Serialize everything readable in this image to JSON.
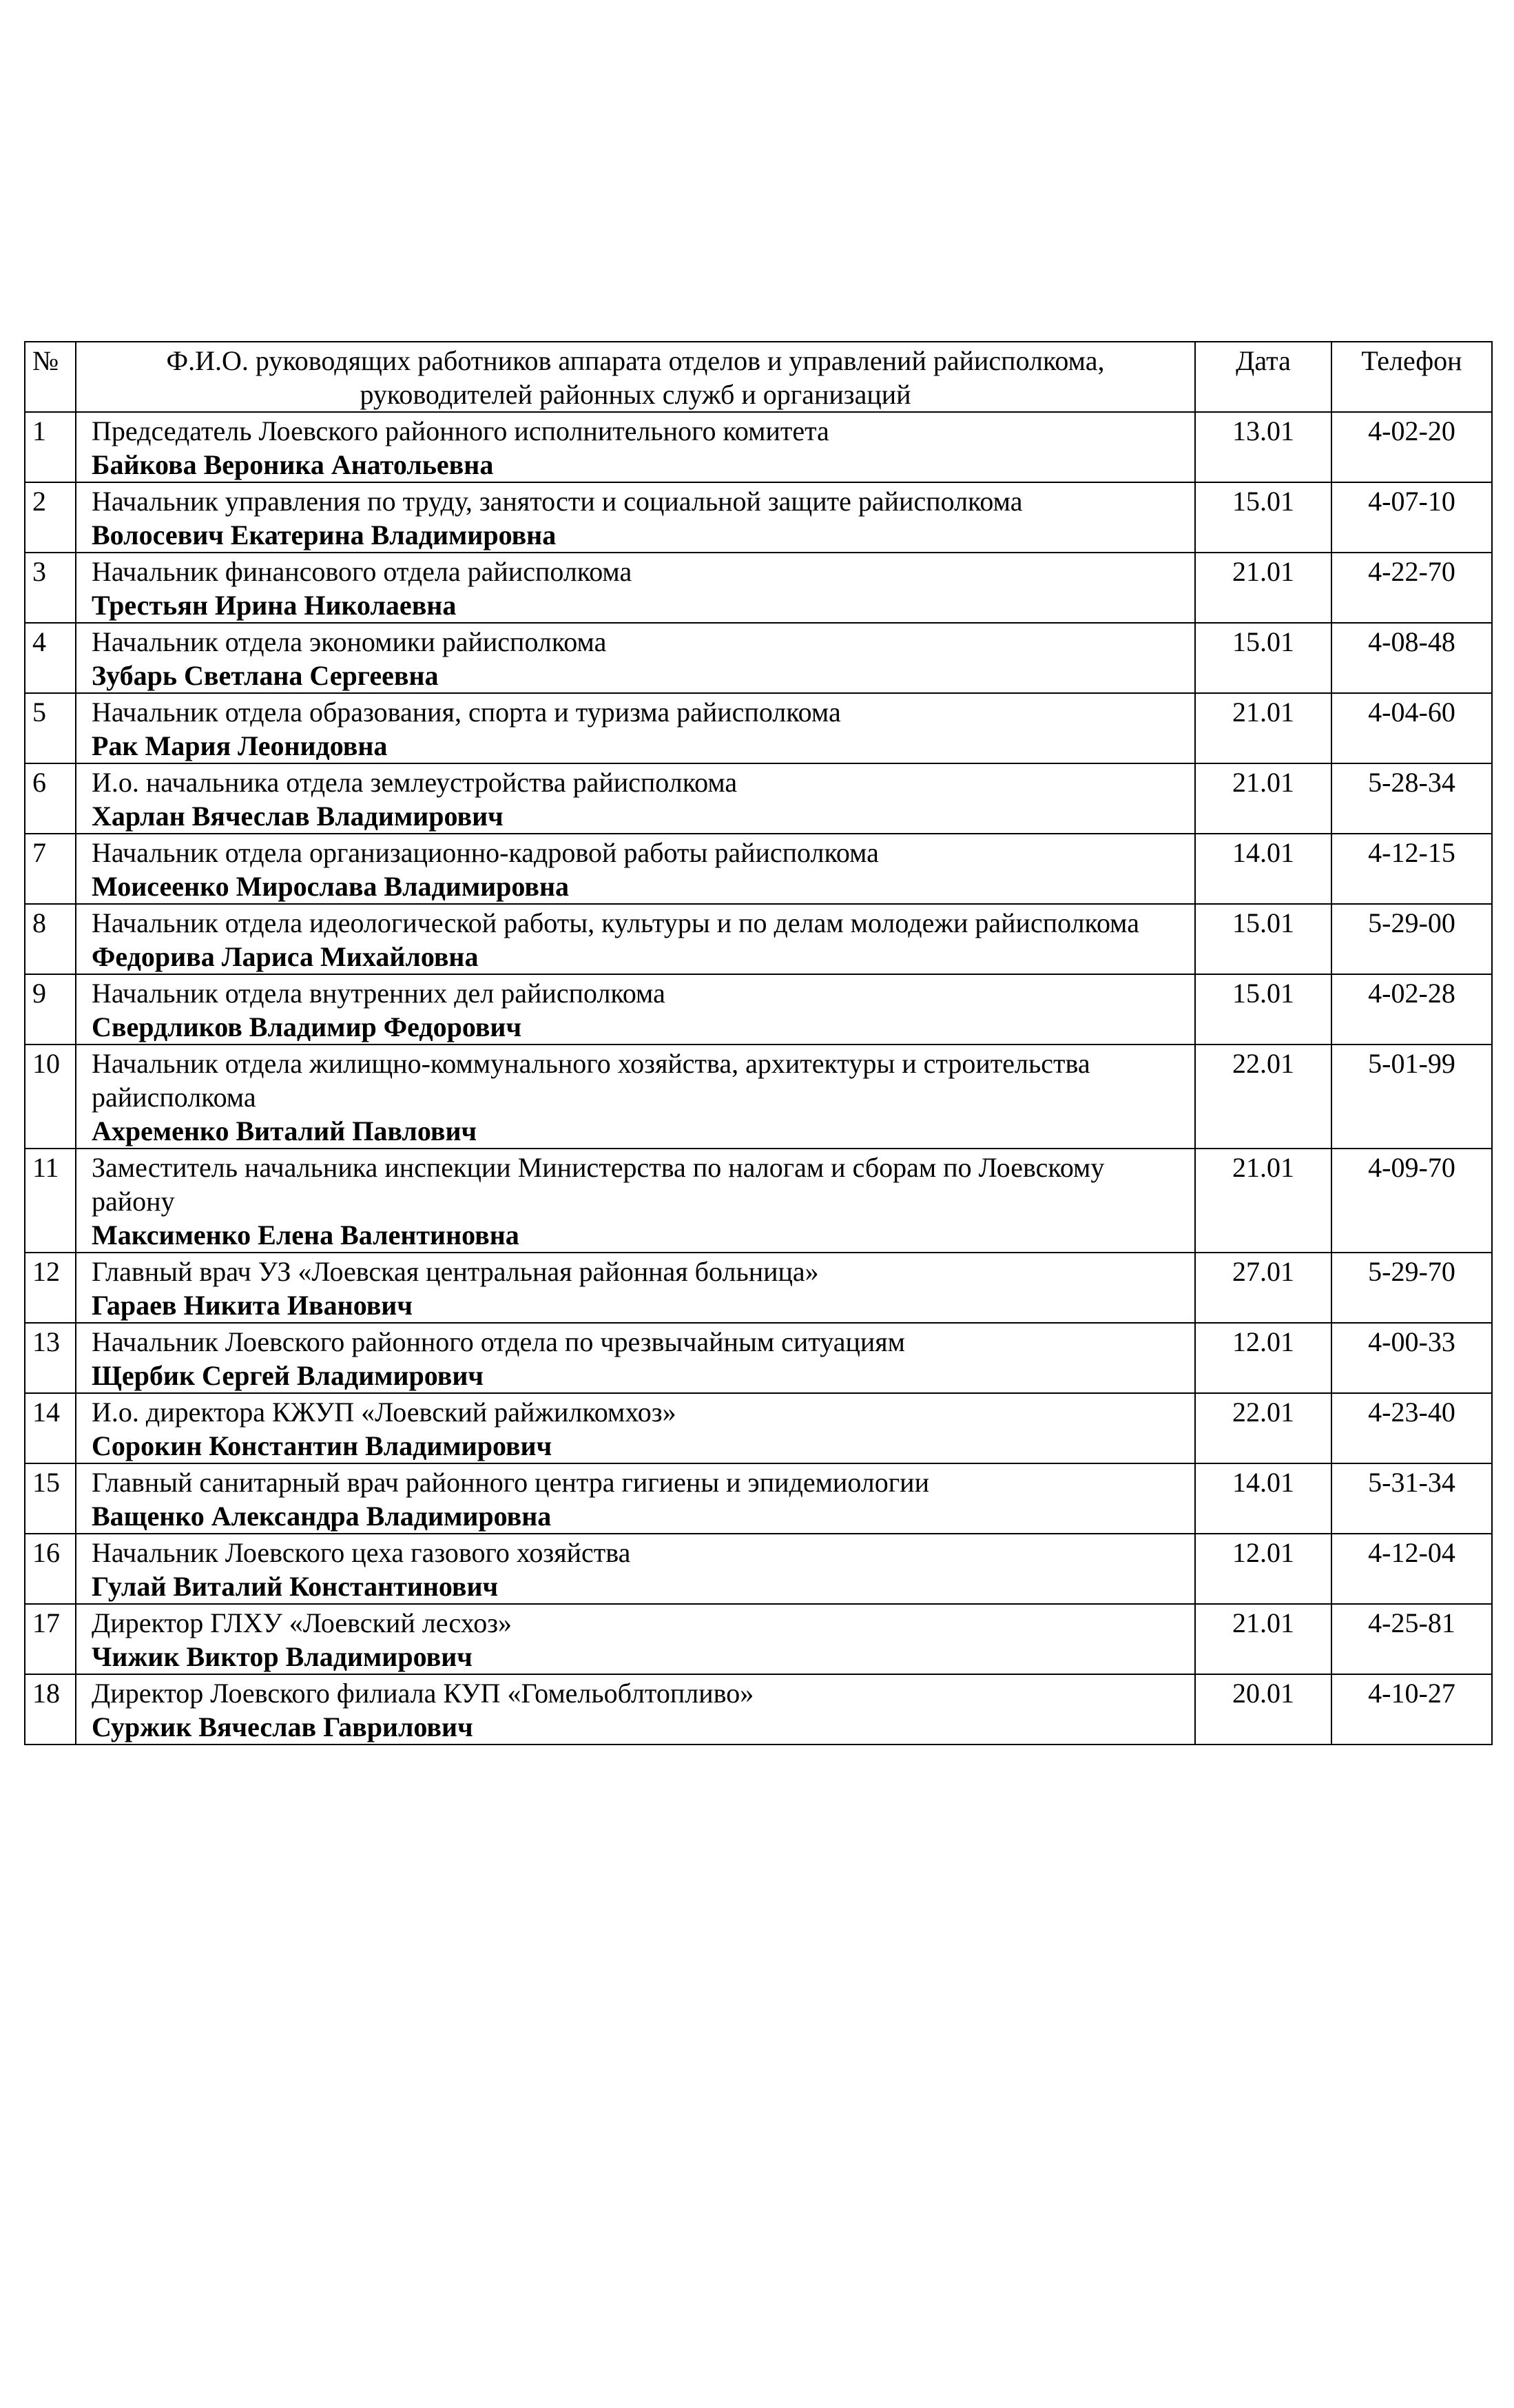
{
  "header": {
    "num": "№",
    "title_line1": "Ф.И.О. руководящих работников аппарата отделов и управлений райисполкома,",
    "title_line2": "руководителей  районных служб и организаций",
    "date": "Дата",
    "phone": "Телефон"
  },
  "rows": [
    {
      "num": "1",
      "position": "Председатель Лоевского районного исполнительного комитета",
      "name": "Байкова Вероника Анатольевна",
      "date": "13.01",
      "phone": "4-02-20"
    },
    {
      "num": "2",
      "position": "Начальник управления  по труду, занятости и социальной защите райисполкома",
      "name": "Волосевич Екатерина Владимировна",
      "date": "15.01",
      "phone": "4-07-10"
    },
    {
      "num": "3",
      "position": "Начальник финансового отдела райисполкома",
      "name": "Трестьян Ирина Николаевна",
      "date": "21.01",
      "phone": "4-22-70"
    },
    {
      "num": "4",
      "position": "Начальник  отдела экономики райисполкома",
      "name": "Зубарь Светлана Сергеевна",
      "date": "15.01",
      "phone": "4-08-48"
    },
    {
      "num": "5",
      "position": "Начальник  отдела образования, спорта и туризма  райисполкома",
      "name": "Рак Мария Леонидовна",
      "date": "21.01",
      "phone": "4-04-60"
    },
    {
      "num": "6",
      "position": "И.о. начальника  отдела землеустройства райисполкома",
      "name": "Харлан Вячеслав Владимирович",
      "date": "21.01",
      "phone": "5-28-34"
    },
    {
      "num": "7",
      "position": "Начальник отдела организационно-кадровой работы райисполкома",
      "name": "Моисеенко Мирослава Владимировна",
      "date": "14.01",
      "phone": "4-12-15"
    },
    {
      "num": "8",
      "position": "Начальник отдела идеологической работы,  культуры и по делам молодежи райисполкома",
      "name": "Федорива Лариса Михайловна",
      "date": "15.01",
      "phone": "5-29-00",
      "inline": true
    },
    {
      "num": "9",
      "position": "Начальник отдела внутренних дел райисполкома",
      "name": "Свердликов Владимир Федорович",
      "date": "15.01",
      "phone": "4-02-28"
    },
    {
      "num": "10",
      "position": "Начальник отдела жилищно-коммунального хозяйства, архитектуры и строительства райисполкома",
      "name": "Ахременко Виталий Павлович",
      "date": "22.01",
      "phone": "5-01-99"
    },
    {
      "num": "11",
      "position": "Заместитель начальника  инспекции  Министерства по налогам и сборам  по Лоевскому  району",
      "name": "Максименко Елена Валентиновна",
      "date": "21.01",
      "phone": "4-09-70"
    },
    {
      "num": "12",
      "position": "Главный  врач УЗ  «Лоевская центральная районная больница»",
      "name": "Гараев Никита Иванович",
      "date": "27.01",
      "phone": "5-29-70"
    },
    {
      "num": "13",
      "position": "Начальник Лоевского районного отдела по чрезвычайным ситуациям",
      "name": "Щербик Сергей Владимирович",
      "date": "12.01",
      "phone": "4-00-33"
    },
    {
      "num": "14",
      "position": "И.о. директора  КЖУП «Лоевский райжилкомхоз»",
      "name": "Сорокин Константин Владимирович",
      "date": "22.01",
      "phone": "4-23-40"
    },
    {
      "num": "15",
      "position": "Главный санитарный врач районного центра гигиены и эпидемиологии",
      "name": "Ващенко Александра Владимировна",
      "date": "14.01",
      "phone": "5-31-34"
    },
    {
      "num": "16",
      "position": "Начальник Лоевского цеха газового хозяйства",
      "name": "Гулай  Виталий Константинович",
      "date": "12.01",
      "phone": "4-12-04"
    },
    {
      "num": "17",
      "position": "Директор ГЛХУ «Лоевский лесхоз»",
      "name": "Чижик Виктор Владимирович",
      "date": "21.01",
      "phone": "4-25-81"
    },
    {
      "num": "18",
      "position": "Директор Лоевского филиала КУП «Гомельоблтопливо»",
      "name": "Суржик Вячеслав Гаврилович",
      "date": "20.01",
      "phone": "4-10-27"
    }
  ]
}
